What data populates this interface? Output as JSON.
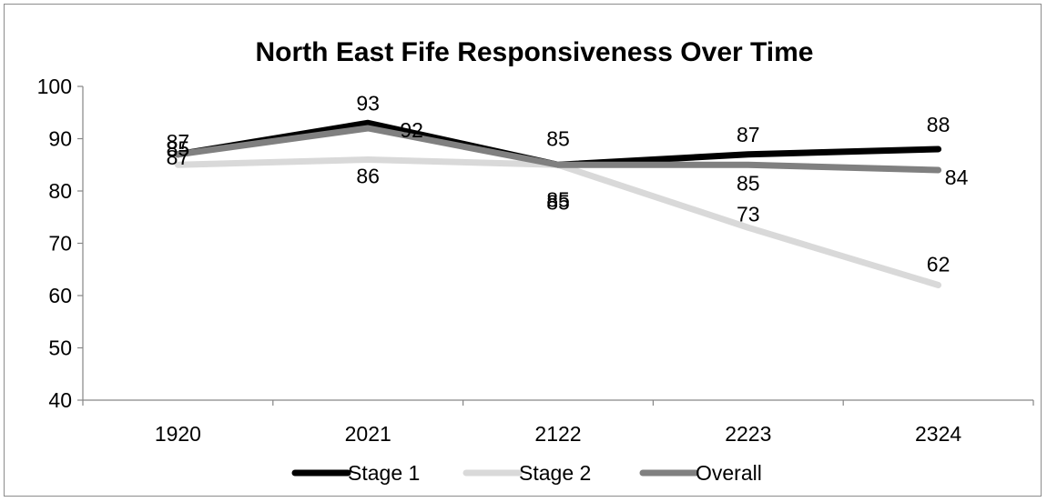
{
  "chart_data": {
    "type": "line",
    "title": "North East Fife Responsiveness Over Time",
    "categories": [
      "1920",
      "2021",
      "2122",
      "2223",
      "2324"
    ],
    "ylim": [
      40,
      100
    ],
    "yticks": [
      40,
      50,
      60,
      70,
      80,
      90,
      100
    ],
    "grid": false,
    "legend_position": "bottom",
    "series": [
      {
        "name": "Stage 1",
        "values": [
          87,
          93,
          85,
          87,
          88
        ],
        "color": "#000000"
      },
      {
        "name": "Stage 2",
        "values": [
          85,
          86,
          85,
          73,
          62
        ],
        "color": "#d9d9d9"
      },
      {
        "name": "Overall",
        "values": [
          87,
          92,
          85,
          85,
          84
        ],
        "color": "#808080"
      }
    ]
  }
}
